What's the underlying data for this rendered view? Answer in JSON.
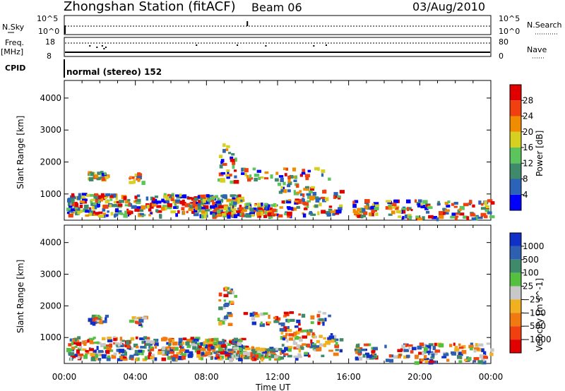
{
  "header": {
    "station": "Zhongshan Station (fitACF)",
    "beam": "Beam 06",
    "date": "03/Aug/2010"
  },
  "strips": {
    "nsky_label": "N.Sky",
    "nsky_ticks": [
      "10^5",
      "10^0"
    ],
    "nsearch_label": "N.Search",
    "nsearch_ticks": [
      "10^5",
      "10^0"
    ],
    "freq_label": "Freq.",
    "freq_unit": "[MHz]",
    "freq_ticks": [
      "18",
      "8"
    ],
    "nave_label": "Nave",
    "nave_ticks": [
      "80",
      "0"
    ],
    "cpid_label": "CPID",
    "cpid_value": "normal (stereo) 152"
  },
  "chart_data": [
    {
      "type": "heatmap",
      "name": "power",
      "ylabel": "Slant Range [km]",
      "yticks": [
        1000,
        2000,
        3000,
        4000
      ],
      "ylim": [
        180,
        4550
      ],
      "xlim": [
        0,
        24
      ],
      "colorbar_label": "Power [dB]",
      "colorbar_ticks": [
        4,
        8,
        12,
        16,
        20,
        24,
        28
      ],
      "colorbar_range": [
        0,
        32
      ],
      "colors": [
        "#0000ff",
        "#2a63b8",
        "#3f8a6a",
        "#5cc45c",
        "#d8d020",
        "#f08c00",
        "#f04010",
        "#e00000"
      ]
    },
    {
      "type": "heatmap",
      "name": "velocity",
      "ylabel": "Slant Range [km]",
      "yticks": [
        1000,
        2000,
        3000,
        4000
      ],
      "ylim": [
        180,
        4550
      ],
      "xlim": [
        0,
        24
      ],
      "xticks": [
        "00:00",
        "04:00",
        "08:00",
        "12:00",
        "16:00",
        "20:00",
        "00:00"
      ],
      "xlabel": "Time UT",
      "colorbar_label": "Velocity [m s^-1]",
      "colorbar_ticks": [
        "1000",
        "500",
        "100",
        "25",
        "−25",
        "−100",
        "−500",
        "−1000"
      ],
      "colors": [
        "#1030c8",
        "#2f5fb0",
        "#3f8a6a",
        "#55c040",
        "#c8c8c8",
        "#f0b020",
        "#f07a10",
        "#f04010",
        "#e00000"
      ]
    }
  ]
}
